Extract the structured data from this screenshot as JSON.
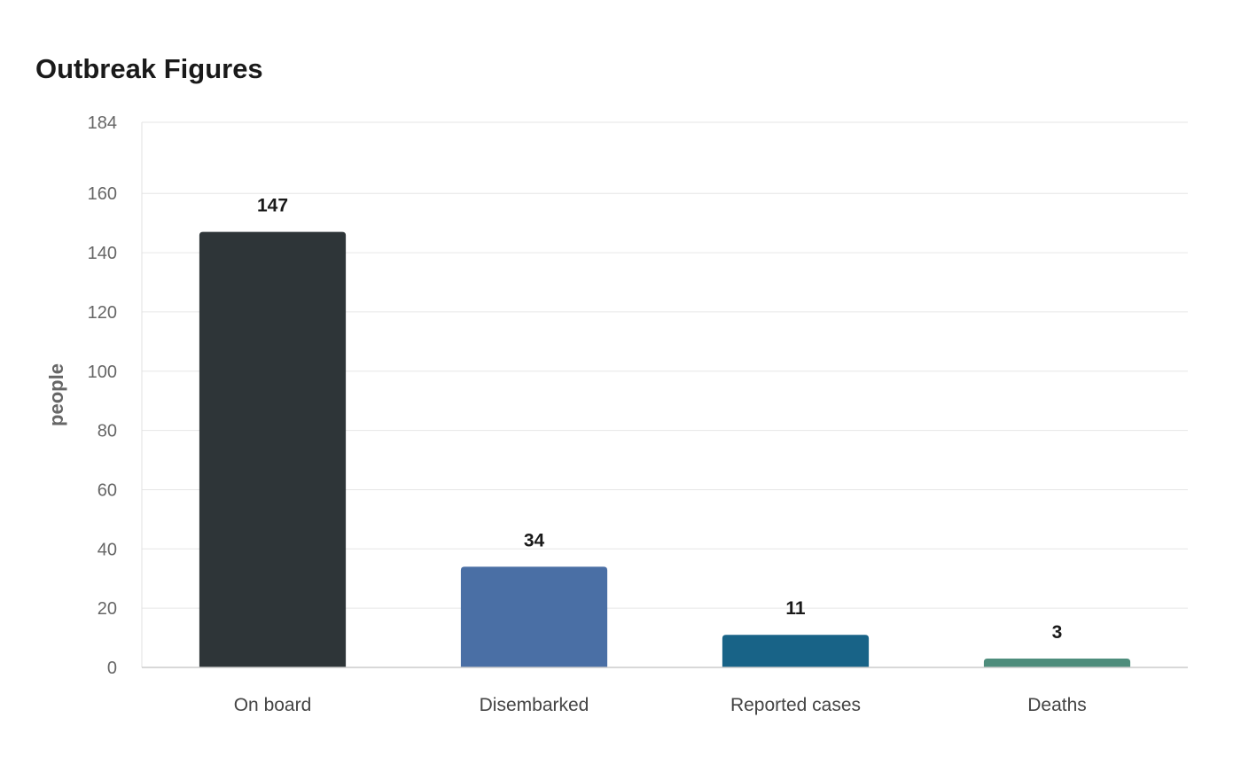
{
  "chart_data": {
    "type": "bar",
    "title": "Outbreak Figures",
    "xlabel": "",
    "ylabel": "people",
    "categories": [
      "On board",
      "Disembarked",
      "Reported cases",
      "Deaths"
    ],
    "values": [
      147,
      34,
      11,
      3
    ],
    "colors": [
      "#2e3538",
      "#4a6fa5",
      "#186387",
      "#4e8d7c"
    ],
    "ylim": [
      0,
      184
    ],
    "yticks": [
      0,
      20,
      40,
      60,
      80,
      100,
      120,
      140,
      160,
      184
    ],
    "grid": true,
    "legend": "none",
    "data_labels": true
  }
}
